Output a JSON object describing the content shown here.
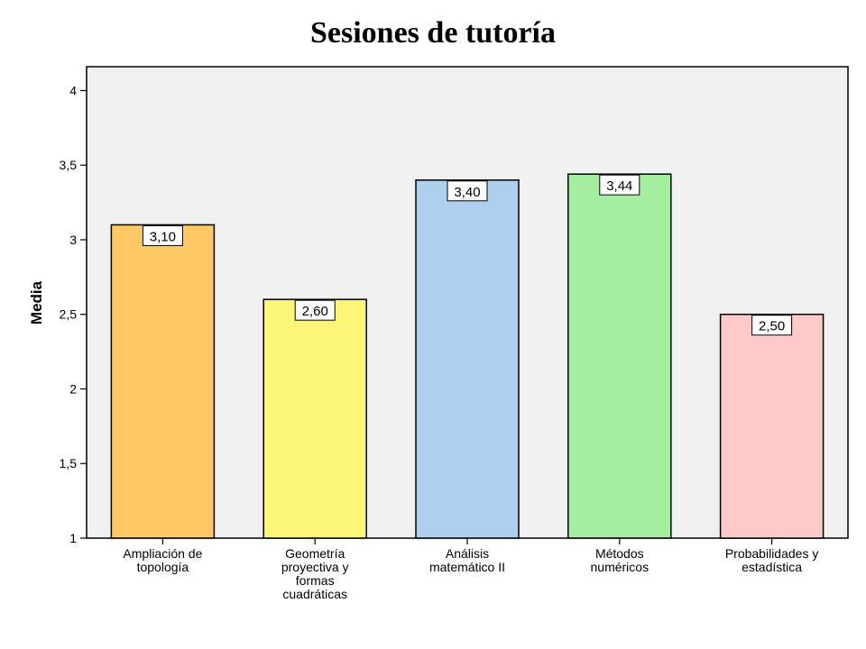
{
  "chart_data": {
    "type": "bar",
    "title": "Sesiones de tutoría",
    "ylabel": "Media",
    "xlabel": "",
    "ylim": [
      1,
      4
    ],
    "yticks": [
      1,
      1.5,
      2,
      2.5,
      3,
      3.5,
      4
    ],
    "ytick_labels": [
      "1",
      "1,5",
      "2",
      "2,5",
      "3",
      "3,5",
      "4"
    ],
    "grid": false,
    "legend": "none",
    "plot_background": "#f0f0f0",
    "categories": [
      [
        "Ampliación de",
        "topología"
      ],
      [
        "Geometría",
        "proyectiva y",
        "formas",
        "cuadráticas"
      ],
      [
        "Análisis",
        "matemático II"
      ],
      [
        "Métodos",
        "numéricos"
      ],
      [
        "Probabilidades y",
        "estadística"
      ]
    ],
    "values": [
      3.1,
      2.6,
      3.4,
      3.44,
      2.5
    ],
    "data_labels": [
      "3,10",
      "2,60",
      "3,40",
      "3,44",
      "2,50"
    ],
    "colors": [
      "#ffc865",
      "#fbf677",
      "#aecfee",
      "#a5ee9f",
      "#fec9c9"
    ]
  }
}
